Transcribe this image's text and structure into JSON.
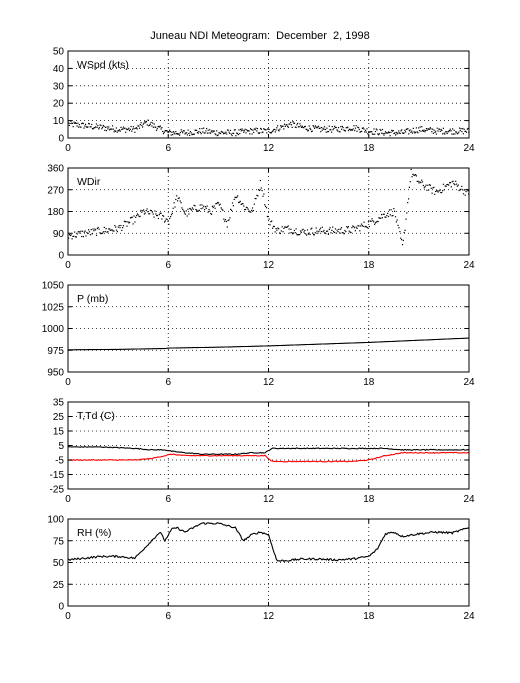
{
  "title": "Juneau NDI Meteogram:  December  2, 1998",
  "chart_data": [
    {
      "type": "scatter",
      "label": "WSpd (kts)",
      "xlim": [
        0,
        24
      ],
      "ylim": [
        0,
        50
      ],
      "xticks": [
        "0",
        "6",
        "12",
        "18",
        "24"
      ],
      "yticks": [
        "0",
        "10",
        "20",
        "30",
        "40",
        "50"
      ],
      "grid": true,
      "series": [
        {
          "color": "#000000",
          "x": [
            0,
            1,
            2,
            3,
            4,
            4.7,
            5.5,
            6,
            7,
            8,
            9,
            10,
            11,
            12,
            13,
            13.3,
            14,
            15,
            16,
            17,
            18,
            19,
            20,
            21,
            22,
            23,
            24
          ],
          "y": [
            8,
            7,
            6,
            5,
            5,
            9,
            5,
            3,
            3,
            4,
            3,
            3,
            4,
            4,
            7,
            8,
            6,
            5,
            5,
            6,
            4,
            3,
            3,
            5,
            4,
            4,
            4
          ]
        }
      ]
    },
    {
      "type": "scatter",
      "label": "WDir",
      "xlim": [
        0,
        24
      ],
      "ylim": [
        0,
        360
      ],
      "xticks": [
        "0",
        "6",
        "12",
        "18",
        "24"
      ],
      "yticks": [
        "0",
        "90",
        "180",
        "270",
        "360"
      ],
      "grid": true,
      "series": [
        {
          "color": "#000000",
          "x": [
            0,
            1,
            2,
            3,
            3.5,
            4,
            4.5,
            5,
            5.5,
            6,
            6.5,
            7,
            7.5,
            8,
            8.5,
            9,
            9.5,
            10,
            10.5,
            11,
            11.5,
            12,
            12.5,
            13,
            14,
            15,
            16,
            17,
            18,
            19,
            19.5,
            20,
            20.5,
            21,
            22,
            23,
            24
          ],
          "y": [
            80,
            90,
            100,
            110,
            130,
            150,
            180,
            170,
            160,
            140,
            240,
            170,
            190,
            200,
            180,
            210,
            130,
            250,
            200,
            180,
            300,
            140,
            100,
            110,
            95,
            100,
            100,
            105,
            130,
            170,
            180,
            30,
            340,
            300,
            260,
            300,
            250
          ]
        }
      ]
    },
    {
      "type": "line",
      "label": "P (mb)",
      "xlim": [
        0,
        24
      ],
      "ylim": [
        950,
        1050
      ],
      "xticks": [
        "0",
        "6",
        "12",
        "18",
        "24"
      ],
      "yticks": [
        "950",
        "975",
        "1000",
        "1025",
        "1050"
      ],
      "grid": true,
      "series": [
        {
          "color": "#000000",
          "x": [
            0,
            3,
            5.8,
            6,
            9,
            12,
            15,
            18,
            21,
            24
          ],
          "y": [
            975.5,
            976,
            977,
            977.5,
            978.5,
            980,
            982,
            984,
            986.5,
            989
          ]
        }
      ]
    },
    {
      "type": "line",
      "label": "T,Td (C)",
      "xlim": [
        0,
        24
      ],
      "ylim": [
        -25,
        35
      ],
      "xticks": [
        "0",
        "6",
        "12",
        "18",
        "24"
      ],
      "yticks": [
        "-25",
        "-15",
        "-5",
        "5",
        "15",
        "25",
        "35"
      ],
      "grid": true,
      "series": [
        {
          "color": "#000000",
          "x": [
            0,
            2,
            4,
            5,
            5.8,
            6.2,
            7,
            8,
            9,
            10,
            11,
            11.8,
            12.2,
            13,
            15,
            17,
            18,
            19,
            20,
            22,
            24
          ],
          "y": [
            4,
            4,
            3,
            2,
            2,
            1,
            0,
            -1,
            -1,
            -1,
            0,
            0,
            3,
            3,
            3,
            3,
            3,
            3,
            2,
            2,
            2
          ]
        },
        {
          "color": "#ff0000",
          "x": [
            0,
            2,
            4,
            5,
            5.8,
            6.2,
            7,
            8,
            9,
            10,
            11,
            11.8,
            12.2,
            13,
            15,
            17,
            18,
            19,
            20,
            22,
            24
          ],
          "y": [
            -5,
            -5,
            -5,
            -4,
            -2,
            -1,
            -2,
            -2,
            -2,
            -2,
            -2,
            -2,
            -6,
            -6,
            -6,
            -6,
            -5,
            -2,
            0,
            0,
            0
          ]
        }
      ]
    },
    {
      "type": "line",
      "label": "RH (%)",
      "xlim": [
        0,
        24
      ],
      "ylim": [
        0,
        100
      ],
      "xticks": [
        "0",
        "6",
        "12",
        "18",
        "24"
      ],
      "yticks": [
        "0",
        "25",
        "50",
        "75",
        "100"
      ],
      "grid": true,
      "series": [
        {
          "color": "#000000",
          "x": [
            0,
            1,
            2,
            3,
            4,
            4.5,
            5,
            5.5,
            5.8,
            6.2,
            6.5,
            7,
            8,
            9,
            10,
            10.5,
            11,
            11.5,
            12,
            12.5,
            13,
            14,
            15,
            16,
            17,
            18,
            18.5,
            19,
            19.5,
            20,
            21,
            22,
            23,
            24
          ],
          "y": [
            53,
            55,
            57,
            57,
            55,
            65,
            75,
            85,
            75,
            88,
            90,
            85,
            95,
            95,
            90,
            75,
            82,
            85,
            82,
            52,
            52,
            54,
            54,
            53,
            54,
            57,
            65,
            83,
            85,
            80,
            83,
            85,
            84,
            90
          ]
        }
      ]
    }
  ]
}
